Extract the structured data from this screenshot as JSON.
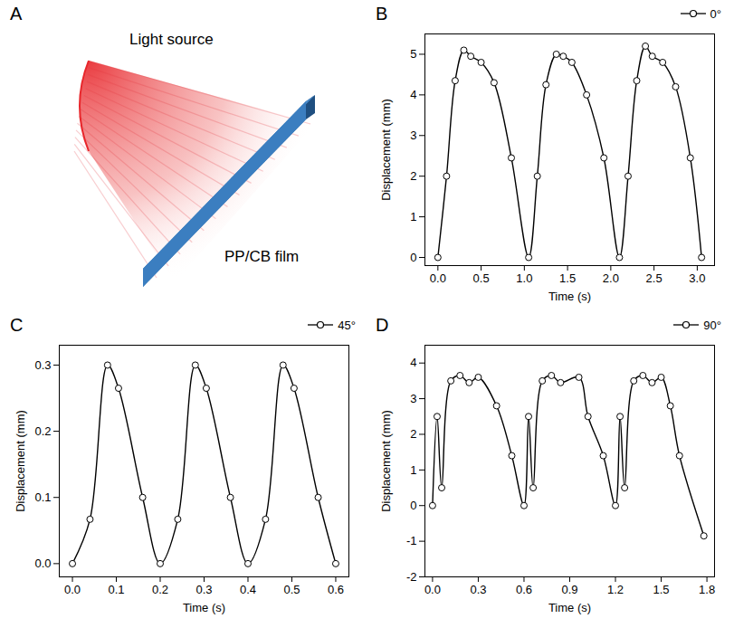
{
  "diagram": {
    "panel_label": "A",
    "source_label": "Light source",
    "film_label": "PP/CB film"
  },
  "chart_data": [
    {
      "type": "line",
      "panel_label": "B",
      "x_label": "Time (s)",
      "y_label": "Displacement (mm)",
      "xlim": [
        -0.15,
        3.2
      ],
      "ylim": [
        -0.2,
        5.5
      ],
      "xticks": [
        {
          "value": 0,
          "label": "0.0"
        },
        {
          "value": 0.5,
          "label": "0.5"
        },
        {
          "value": 1,
          "label": "1.0"
        },
        {
          "value": 1.5,
          "label": "1.5"
        },
        {
          "value": 2,
          "label": "2.0"
        },
        {
          "value": 2.5,
          "label": "2.5"
        },
        {
          "value": 3,
          "label": "3.0"
        }
      ],
      "yticks": [
        0,
        1,
        2,
        3,
        4,
        5
      ],
      "legend": "top-right",
      "series": [
        {
          "name": "0°",
          "color": "#000000",
          "marker": "circle",
          "line_style": "solid",
          "x": [
            0,
            0.1,
            0.2,
            0.3,
            0.38,
            0.5,
            0.65,
            0.85,
            1.05,
            1.15,
            1.25,
            1.37,
            1.45,
            1.55,
            1.72,
            1.92,
            2.1,
            2.2,
            2.3,
            2.4,
            2.48,
            2.6,
            2.75,
            2.92,
            3.05
          ],
          "values": [
            0,
            2.0,
            4.35,
            5.1,
            4.95,
            4.8,
            4.3,
            2.45,
            0,
            2.0,
            4.25,
            5.0,
            4.95,
            4.8,
            4.0,
            2.45,
            0,
            2.0,
            4.35,
            5.2,
            4.95,
            4.8,
            4.2,
            2.45,
            0
          ]
        }
      ]
    },
    {
      "type": "line",
      "panel_label": "C",
      "x_label": "Time (s)",
      "y_label": "Displacement (mm)",
      "xlim": [
        -0.03,
        0.63
      ],
      "ylim": [
        -0.02,
        0.33
      ],
      "xticks": [
        {
          "value": 0,
          "label": "0.0"
        },
        0.1,
        0.2,
        0.3,
        0.4,
        0.5,
        0.6
      ],
      "yticks": [
        {
          "value": 0,
          "label": "0.0"
        },
        0.1,
        0.2,
        0.3
      ],
      "legend": "top-right",
      "series": [
        {
          "name": "45°",
          "color": "#000000",
          "marker": "circle",
          "line_style": "solid",
          "x": [
            0,
            0.04,
            0.08,
            0.105,
            0.16,
            0.2,
            0.24,
            0.28,
            0.305,
            0.36,
            0.4,
            0.44,
            0.48,
            0.505,
            0.56,
            0.6
          ],
          "values": [
            0,
            0.067,
            0.3,
            0.265,
            0.1,
            0,
            0.067,
            0.3,
            0.265,
            0.1,
            0,
            0.067,
            0.3,
            0.265,
            0.1,
            0
          ]
        }
      ]
    },
    {
      "type": "line",
      "panel_label": "D",
      "x_label": "Time (s)",
      "y_label": "Displacement (mm)",
      "xlim": [
        -0.05,
        1.85
      ],
      "ylim": [
        -2,
        4.5
      ],
      "xticks": [
        {
          "value": 0,
          "label": "0.0"
        },
        0.3,
        0.6,
        0.9,
        1.2,
        1.5,
        1.8
      ],
      "yticks": [
        -2,
        -1,
        0,
        1,
        2,
        3,
        4
      ],
      "legend": "top-right",
      "series": [
        {
          "name": "90°",
          "color": "#000000",
          "marker": "circle",
          "line_style": "solid",
          "x": [
            0,
            0.03,
            0.06,
            0.12,
            0.18,
            0.24,
            0.3,
            0.42,
            0.52,
            0.6,
            0.63,
            0.66,
            0.72,
            0.78,
            0.84,
            0.96,
            1.02,
            1.12,
            1.2,
            1.23,
            1.26,
            1.32,
            1.38,
            1.44,
            1.5,
            1.56,
            1.62,
            1.78
          ],
          "values": [
            0,
            2.5,
            0.5,
            3.5,
            3.65,
            3.45,
            3.6,
            2.8,
            1.4,
            0,
            2.5,
            0.5,
            3.5,
            3.65,
            3.45,
            3.6,
            2.5,
            1.4,
            0,
            2.5,
            0.5,
            3.5,
            3.65,
            3.45,
            3.6,
            2.8,
            1.4,
            -0.85
          ]
        }
      ]
    }
  ]
}
